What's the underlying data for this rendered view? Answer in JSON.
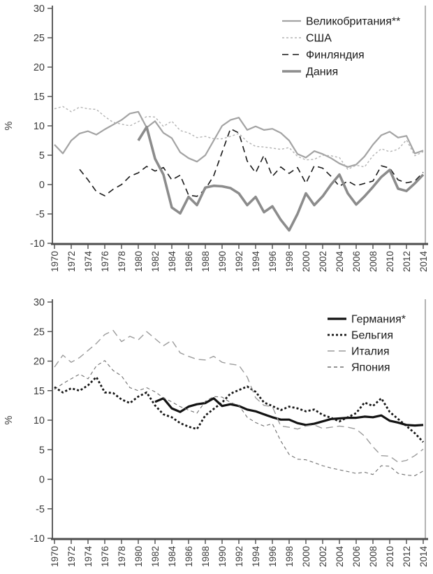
{
  "chart_data": [
    {
      "type": "line",
      "title": "",
      "xlabel": "",
      "ylabel": "%",
      "ylim": [
        -10,
        30
      ],
      "yticks": [
        30,
        25,
        20,
        15,
        10,
        5,
        0,
        -5,
        -10
      ],
      "x_range": [
        1970,
        2014
      ],
      "xticks": [
        1970,
        1972,
        1974,
        1976,
        1978,
        1980,
        1982,
        1984,
        1986,
        1988,
        1990,
        1992,
        1994,
        1996,
        1998,
        2000,
        2002,
        2004,
        2006,
        2008,
        2010,
        2012,
        2014
      ],
      "grid": false,
      "legend_position": "top-right-inside",
      "axis_color": "#4d4d4d",
      "tick_label_color": "#3c3c3c",
      "legend_text_color": "#1a1a1a",
      "series": [
        {
          "name": "Великобритания**",
          "start_year": 1970,
          "color": "#a3a3a3",
          "width": 2.2,
          "dash": "",
          "values": [
            6.8,
            5.3,
            7.5,
            8.7,
            9.1,
            8.5,
            9.4,
            10.2,
            11.0,
            12.1,
            12.4,
            9.7,
            10.8,
            8.8,
            7.9,
            5.5,
            4.5,
            3.9,
            5.0,
            7.5,
            10.0,
            11.0,
            11.4,
            9.3,
            9.9,
            9.3,
            9.5,
            8.8,
            7.5,
            5.2,
            4.6,
            5.7,
            5.2,
            4.5,
            3.6,
            3.0,
            3.4,
            4.8,
            6.8,
            8.4,
            9.0,
            8.0,
            8.3,
            5.3,
            5.8
          ]
        },
        {
          "name": "США",
          "start_year": 1970,
          "color": "#b3b3b3",
          "width": 1.4,
          "dash": "3,3",
          "values": [
            12.9,
            13.3,
            12.4,
            13.2,
            12.9,
            12.8,
            11.6,
            10.6,
            10.3,
            10.0,
            10.7,
            11.6,
            11.5,
            9.9,
            10.8,
            9.2,
            8.8,
            8.0,
            8.2,
            7.8,
            7.8,
            8.2,
            8.7,
            7.3,
            6.5,
            6.4,
            6.2,
            6.0,
            6.3,
            4.8,
            4.2,
            4.3,
            5.0,
            4.9,
            4.6,
            2.6,
            3.3,
            3.0,
            4.9,
            6.1,
            5.6,
            6.0,
            7.6,
            4.9,
            5.6
          ]
        },
        {
          "name": "Финляндия",
          "start_year": 1973,
          "color": "#1a1a1a",
          "width": 1.6,
          "dash": "9,6",
          "values": [
            2.6,
            0.8,
            -1.2,
            -1.9,
            -0.8,
            0.0,
            1.4,
            2.0,
            3.1,
            2.3,
            2.9,
            0.8,
            1.6,
            -1.8,
            -2.0,
            -0.8,
            1.5,
            5.5,
            9.5,
            8.8,
            4.0,
            2.0,
            5.0,
            1.4,
            3.0,
            1.9,
            2.9,
            0.2,
            3.2,
            2.8,
            1.4,
            -0.3,
            0.6,
            -0.2,
            0.2,
            0.6,
            3.2,
            2.8,
            0.8,
            0.3,
            0.6,
            2.1
          ]
        },
        {
          "name": "Дания",
          "start_year": 1980,
          "color": "#8c8c8c",
          "width": 3.6,
          "dash": "",
          "values": [
            7.5,
            9.8,
            4.4,
            1.7,
            -3.9,
            -4.9,
            -2.1,
            -3.5,
            -0.5,
            -0.2,
            -0.3,
            -0.6,
            -1.5,
            -3.5,
            -2.1,
            -4.7,
            -3.7,
            -6.0,
            -7.8,
            -5.0,
            -1.5,
            -3.5,
            -2.0,
            0.0,
            1.7,
            -1.5,
            -3.4,
            -2.0,
            -0.4,
            1.3,
            2.5,
            -0.7,
            -1.1,
            0.2,
            1.7
          ]
        }
      ]
    },
    {
      "type": "line",
      "title": "",
      "xlabel": "",
      "ylabel": "%",
      "ylim": [
        -10,
        30
      ],
      "yticks": [
        30,
        25,
        20,
        15,
        10,
        5,
        0,
        -5,
        -10
      ],
      "x_range": [
        1970,
        2014
      ],
      "xticks": [
        1970,
        1972,
        1974,
        1976,
        1978,
        1980,
        1982,
        1984,
        1986,
        1988,
        1990,
        1992,
        1994,
        1996,
        1998,
        2000,
        2002,
        2004,
        2006,
        2008,
        2010,
        2012,
        2014
      ],
      "grid": false,
      "legend_position": "top-right-inside",
      "axis_color": "#4d4d4d",
      "tick_label_color": "#3c3c3c",
      "legend_text_color": "#1a1a1a",
      "series": [
        {
          "name": "Германия*",
          "start_year": 1982,
          "color": "#121212",
          "width": 3.2,
          "dash": "",
          "values": [
            13.1,
            13.7,
            12.0,
            11.4,
            12.3,
            12.7,
            12.9,
            13.7,
            12.4,
            12.7,
            12.4,
            11.8,
            11.5,
            11.0,
            10.5,
            10.1,
            10.1,
            9.5,
            9.2,
            9.4,
            9.8,
            10.2,
            10.3,
            10.4,
            10.4,
            10.6,
            10.5,
            10.8,
            9.9,
            9.6,
            9.2,
            9.1,
            9.2
          ]
        },
        {
          "name": "Бельгия",
          "start_year": 1970,
          "color": "#161616",
          "width": 2.8,
          "dash": "3,3",
          "values": [
            15.6,
            14.7,
            15.4,
            15.0,
            15.9,
            17.3,
            14.7,
            14.6,
            13.5,
            12.9,
            14.0,
            14.7,
            12.5,
            11.0,
            10.5,
            9.5,
            8.9,
            8.5,
            10.8,
            11.9,
            13.0,
            14.5,
            15.1,
            15.7,
            14.8,
            13.0,
            12.4,
            11.7,
            12.3,
            12.0,
            11.5,
            11.8,
            10.9,
            10.4,
            9.8,
            10.5,
            11.2,
            13.0,
            12.4,
            13.7,
            11.4,
            10.2,
            9.0,
            7.8,
            6.3
          ]
        },
        {
          "name": "Италия",
          "start_year": 1970,
          "color": "#9c9c9c",
          "width": 1.4,
          "dash": "10,6",
          "values": [
            19.0,
            21.0,
            19.8,
            20.6,
            21.8,
            23.0,
            24.5,
            25.2,
            23.3,
            24.2,
            23.6,
            25.0,
            23.8,
            22.6,
            23.5,
            21.4,
            20.8,
            20.3,
            20.2,
            20.8,
            19.8,
            19.5,
            19.3,
            17.3,
            13.8,
            12.5,
            12.3,
            9.0,
            8.8,
            8.5,
            9.0,
            9.2,
            8.6,
            8.8,
            9.0,
            8.8,
            8.5,
            7.3,
            5.5,
            4.0,
            3.9,
            2.9,
            3.2,
            4.0,
            5.1
          ]
        },
        {
          "name": "Япония",
          "start_year": 1970,
          "color": "#707070",
          "width": 1.1,
          "dash": "5,4",
          "values": [
            15.2,
            16.2,
            17.0,
            17.8,
            17.0,
            19.2,
            20.1,
            18.4,
            17.5,
            15.5,
            15.0,
            15.5,
            14.8,
            13.8,
            13.1,
            12.3,
            11.7,
            11.2,
            13.2,
            14.0,
            13.9,
            13.0,
            12.5,
            10.5,
            9.6,
            9.0,
            9.4,
            6.5,
            4.2,
            3.4,
            3.3,
            2.8,
            2.3,
            1.9,
            1.6,
            1.3,
            1.0,
            1.2,
            0.8,
            2.3,
            2.2,
            1.0,
            0.7,
            0.6,
            1.4
          ]
        }
      ]
    }
  ]
}
